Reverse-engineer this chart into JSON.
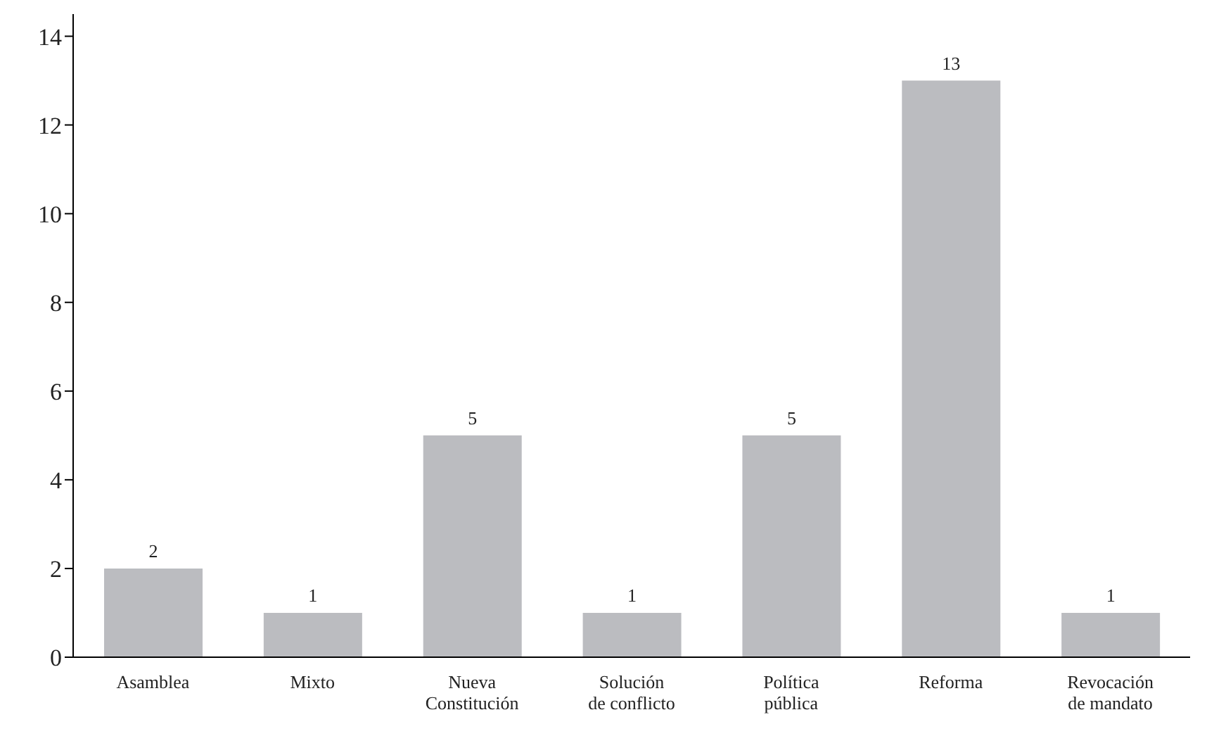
{
  "chart_data": {
    "type": "bar",
    "categories": [
      "Asamblea",
      "Mixto",
      "Nueva Constitución",
      "Solución de conflicto",
      "Política pública",
      "Reforma",
      "Revocación de mandato"
    ],
    "values": [
      2,
      1,
      5,
      1,
      5,
      13,
      1
    ],
    "color": "#bbbcc0",
    "ylim": [
      0,
      14.5
    ],
    "yticks": [
      0,
      2,
      4,
      6,
      8,
      10,
      12,
      14
    ],
    "data_labels": true
  }
}
